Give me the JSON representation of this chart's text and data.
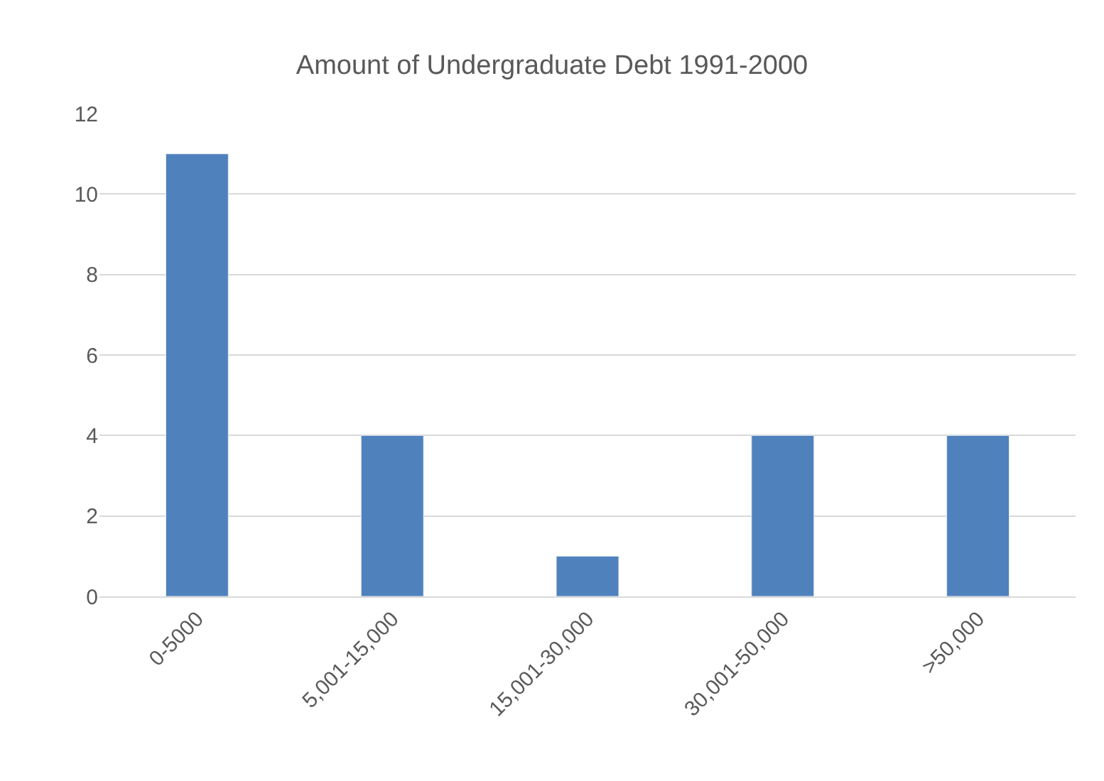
{
  "chart_data": {
    "type": "bar",
    "title": "Amount of Undergraduate Debt 1991-2000",
    "categories": [
      "0-5000",
      "5,001-15,000",
      "15,001-30,000",
      "30,001-50,000",
      ">50,000"
    ],
    "values": [
      11,
      4,
      1,
      4,
      4
    ],
    "color": "#4f81bd",
    "ylim": [
      0,
      12
    ],
    "yticks": [
      0,
      2,
      4,
      6,
      8,
      10,
      12
    ],
    "grid": "y"
  }
}
